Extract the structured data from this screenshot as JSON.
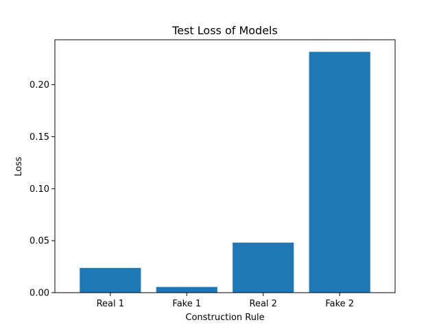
{
  "chart_data": {
    "type": "bar",
    "title": "Test Loss of Models",
    "xlabel": "Construction Rule",
    "ylabel": "Loss",
    "categories": [
      "Real 1",
      "Fake 1",
      "Real 2",
      "Fake 2"
    ],
    "values": [
      0.0238,
      0.0055,
      0.0481,
      0.2316
    ],
    "ylim": [
      0,
      0.2432
    ],
    "yticks": [
      0.0,
      0.05,
      0.1,
      0.15,
      0.2
    ],
    "ytick_labels": [
      "0.00",
      "0.05",
      "0.10",
      "0.15",
      "0.20"
    ],
    "grid": false,
    "bar_color": "#1f77b4"
  }
}
